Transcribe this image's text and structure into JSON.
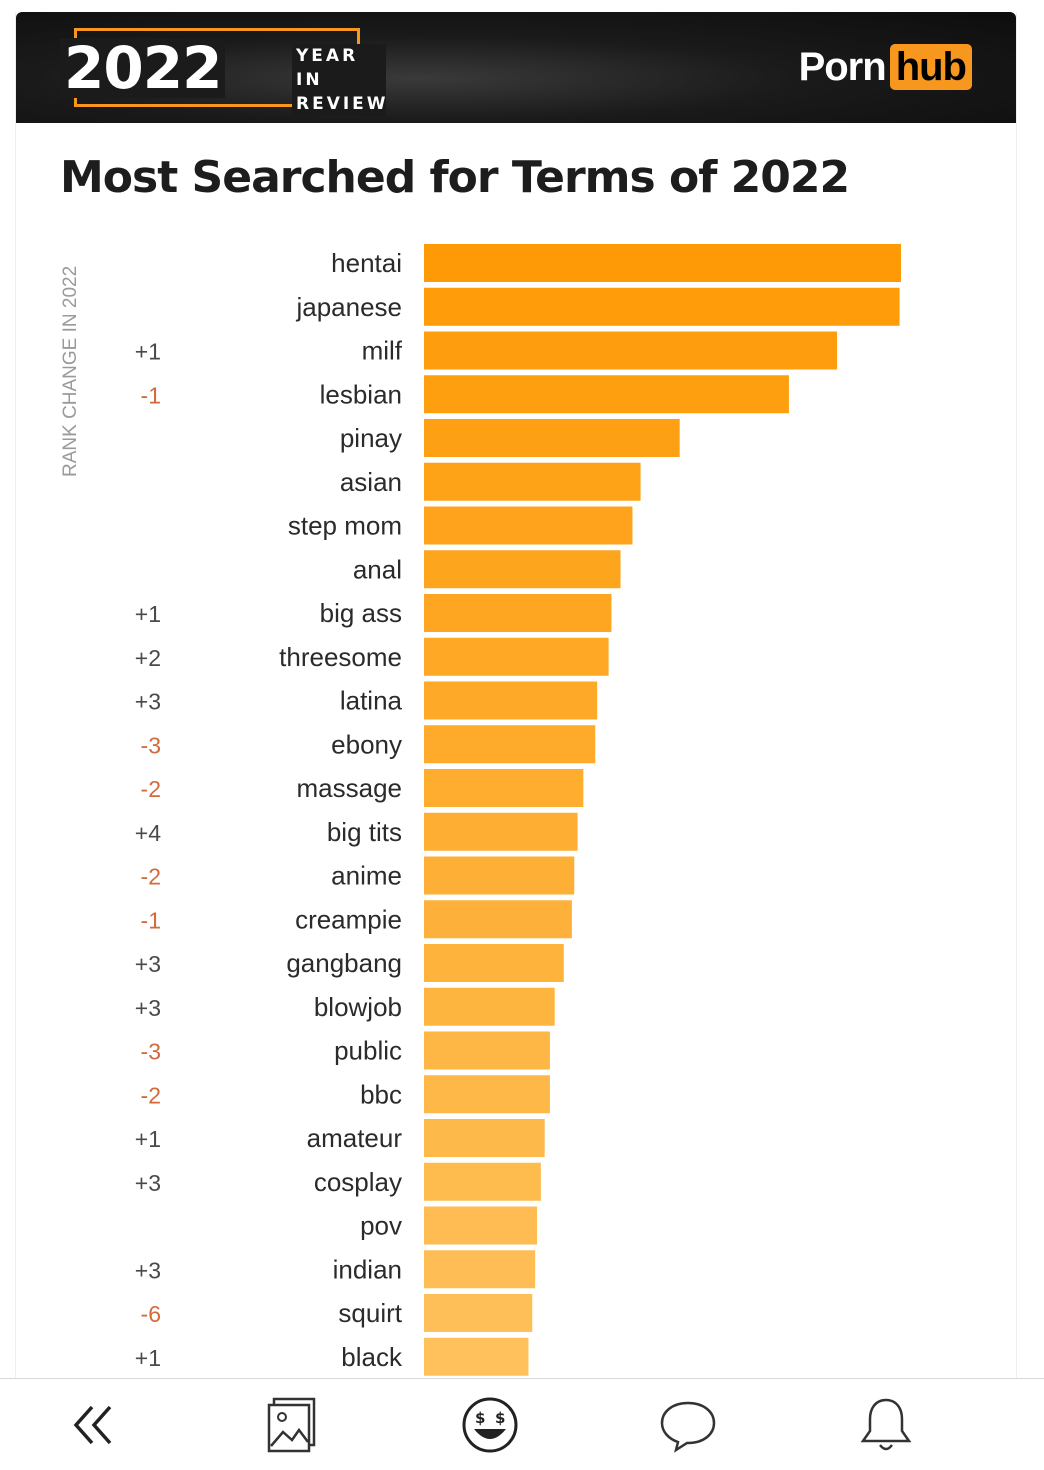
{
  "banner": {
    "year": "2022",
    "subtitle_line1": "YEAR IN",
    "subtitle_line2": "REVIEW",
    "logo_part1": "Porn",
    "logo_part2": "hub"
  },
  "colors": {
    "accent": "#f7971e",
    "bar_top": "#fe9a06",
    "bar_bottom": "#fec15c",
    "up": "#4a4a4a",
    "down": "#d26a3c"
  },
  "chart_data": {
    "type": "bar",
    "orientation": "horizontal",
    "title": "Most Searched for Terms of 2022",
    "rank_change_label": "RANK CHANGE IN 2022",
    "categories": [
      "hentai",
      "japanese",
      "milf",
      "lesbian",
      "pinay",
      "asian",
      "step mom",
      "anal",
      "big ass",
      "threesome",
      "latina",
      "ebony",
      "massage",
      "big tits",
      "anime",
      "creampie",
      "gangbang",
      "blowjob",
      "public",
      "bbc",
      "amateur",
      "cosplay",
      "pov",
      "indian",
      "squirt",
      "black"
    ],
    "values": [
      100,
      99.7,
      86.6,
      76.5,
      53.6,
      45.4,
      43.7,
      41.2,
      39.3,
      38.7,
      36.3,
      35.9,
      33.4,
      32.2,
      31.5,
      31.0,
      29.3,
      27.4,
      26.4,
      26.4,
      25.3,
      24.5,
      23.7,
      23.3,
      22.7,
      21.9
    ],
    "rank_changes": [
      "",
      "",
      "+1",
      "-1",
      "",
      "",
      "",
      "",
      "+1",
      "+2",
      "+3",
      "-3",
      "-2",
      "+4",
      "-2",
      "-1",
      "+3",
      "+3",
      "-3",
      "-2",
      "+1",
      "+3",
      "",
      "+3",
      "-6",
      "+1"
    ],
    "xlim": [
      0,
      100
    ]
  },
  "nav": {
    "items": [
      {
        "name": "back-button",
        "icon": "double-chevron-left-icon"
      },
      {
        "name": "gallery-button",
        "icon": "image-icon"
      },
      {
        "name": "emoji-button",
        "icon": "money-eyes-emoji-icon"
      },
      {
        "name": "comment-button",
        "icon": "speech-bubble-icon"
      },
      {
        "name": "notifications-button",
        "icon": "bell-icon"
      }
    ]
  }
}
